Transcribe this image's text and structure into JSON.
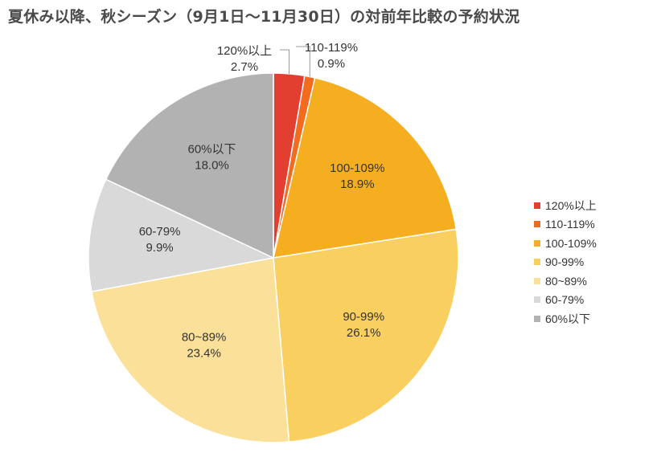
{
  "chart_data": {
    "type": "pie",
    "title": "夏休み以降、秋シーズン（9月1日～11月30日）の対前年比較の予約状況",
    "slices": [
      {
        "label": "120%以上",
        "value": 2.7,
        "value_label": "2.7%",
        "color": "#e23f30"
      },
      {
        "label": "110-119%",
        "value": 0.9,
        "value_label": "0.9%",
        "color": "#f26b1f"
      },
      {
        "label": "100-109%",
        "value": 18.9,
        "value_label": "18.9%",
        "color": "#f6ae21"
      },
      {
        "label": "90-99%",
        "value": 26.1,
        "value_label": "26.1%",
        "color": "#f9cf5f"
      },
      {
        "label": "80~89%",
        "value": 23.4,
        "value_label": "23.4%",
        "color": "#fbe09a"
      },
      {
        "label": "60-79%",
        "value": 9.9,
        "value_label": "9.9%",
        "color": "#d9d9d9"
      },
      {
        "label": "60%以下",
        "value": 18.0,
        "value_label": "18.0%",
        "color": "#b2b2b2"
      }
    ],
    "start": "top",
    "direction": "clockwise",
    "legend_position": "right"
  }
}
